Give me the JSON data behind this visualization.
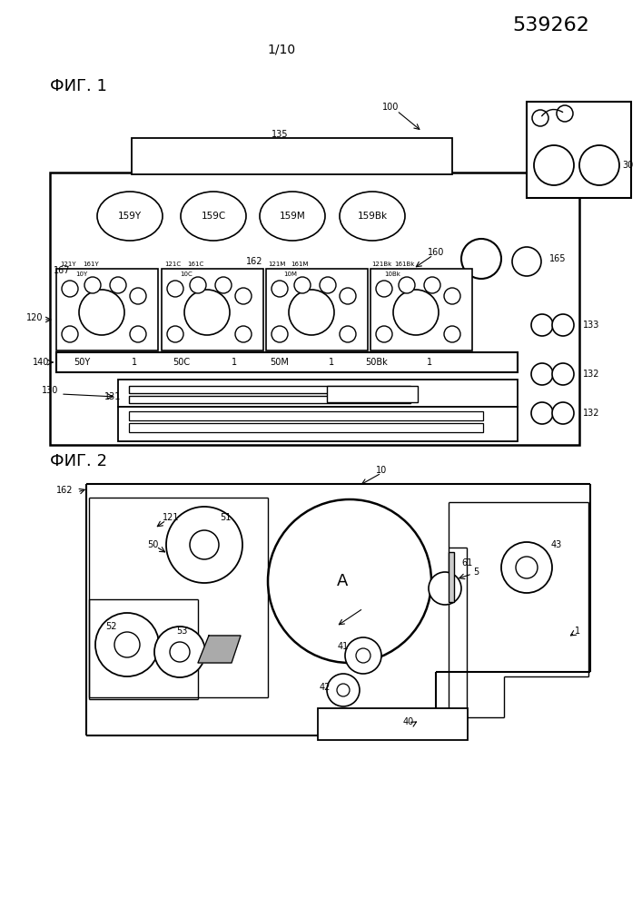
{
  "patent_number": "539262",
  "page_label": "1/10",
  "fig1_label": "ФИГ. 1",
  "fig2_label": "ФИГ. 2",
  "bg_color": "#ffffff",
  "line_color": "#000000"
}
